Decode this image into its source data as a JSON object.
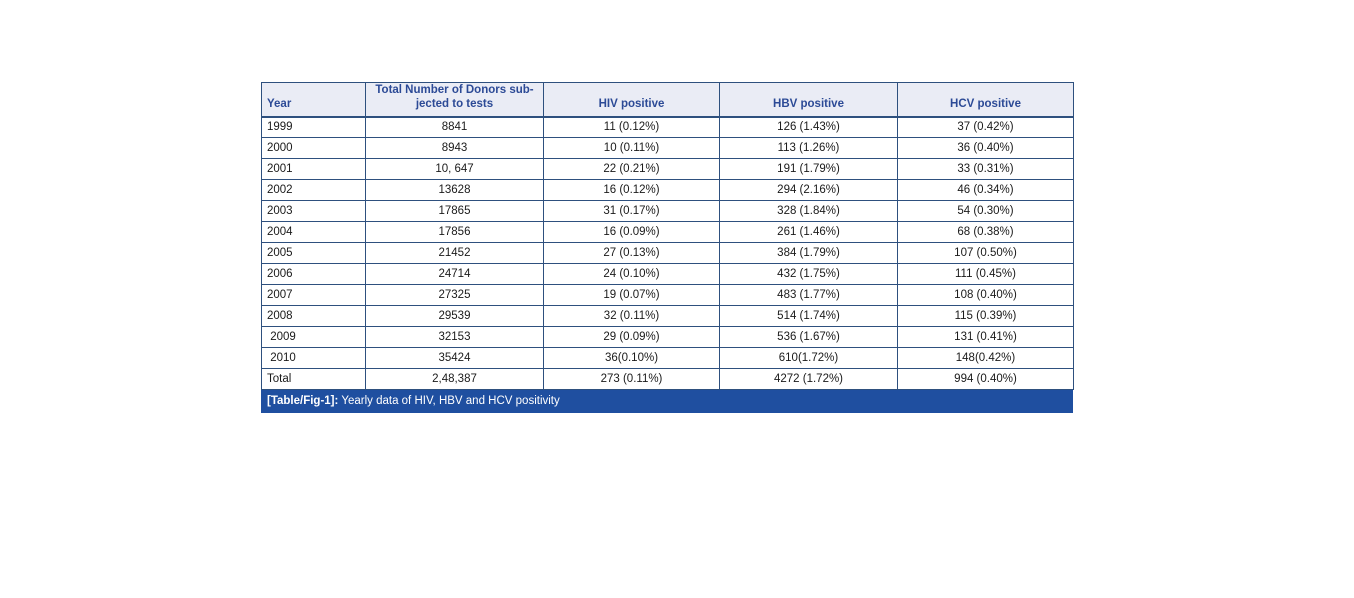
{
  "colors": {
    "border": "#2e507e",
    "header_background": "#eaecf5",
    "header_text": "#2c4a96",
    "caption_background": "#1f4fa0",
    "caption_text": "#ffffff",
    "body_text": "#1a1a1a"
  },
  "chart_data": {
    "type": "table",
    "title": "[Table/Fig-1]: Yearly data of HIV, HBV and HCV positivity",
    "columns": [
      "Year",
      "Total Number of Donors sub-\njected to tests",
      "HIV positive",
      "HBV positive",
      "HCV positive"
    ],
    "rows": [
      [
        "1999",
        "8841",
        "11 (0.12%)",
        "126 (1.43%)",
        "37 (0.42%)"
      ],
      [
        "2000",
        "8943",
        "10 (0.11%)",
        "113 (1.26%)",
        "36 (0.40%)"
      ],
      [
        "2001",
        "10, 647",
        "22 (0.21%)",
        "191 (1.79%)",
        "33 (0.31%)"
      ],
      [
        "2002",
        "13628",
        "16 (0.12%)",
        "294 (2.16%)",
        "46 (0.34%)"
      ],
      [
        "2003",
        "17865",
        "31 (0.17%)",
        "328 (1.84%)",
        "54 (0.30%)"
      ],
      [
        "2004",
        "17856",
        "16 (0.09%)",
        "261 (1.46%)",
        "68 (0.38%)"
      ],
      [
        "2005",
        "21452",
        "27 (0.13%)",
        "384 (1.79%)",
        "107 (0.50%)"
      ],
      [
        "2006",
        "24714",
        "24 (0.10%)",
        "432 (1.75%)",
        "111 (0.45%)"
      ],
      [
        "2007",
        "27325",
        "19 (0.07%)",
        "483 (1.77%)",
        "108 (0.40%)"
      ],
      [
        "2008",
        "29539",
        "32 (0.11%)",
        "514 (1.74%)",
        "115 (0.39%)"
      ],
      [
        " 2009",
        "32153",
        "29 (0.09%)",
        "536 (1.67%)",
        "131 (0.41%)"
      ],
      [
        " 2010",
        "35424",
        "36(0.10%)",
        "610(1.72%)",
        "148(0.42%)"
      ],
      [
        "Total",
        "2,48,387",
        "273 (0.11%)",
        "4272 (1.72%)",
        "994 (0.40%)"
      ]
    ]
  },
  "caption": {
    "prefix": "[Table/Fig-1]:",
    "text": "Yearly data of HIV, HBV and HCV positivity"
  }
}
